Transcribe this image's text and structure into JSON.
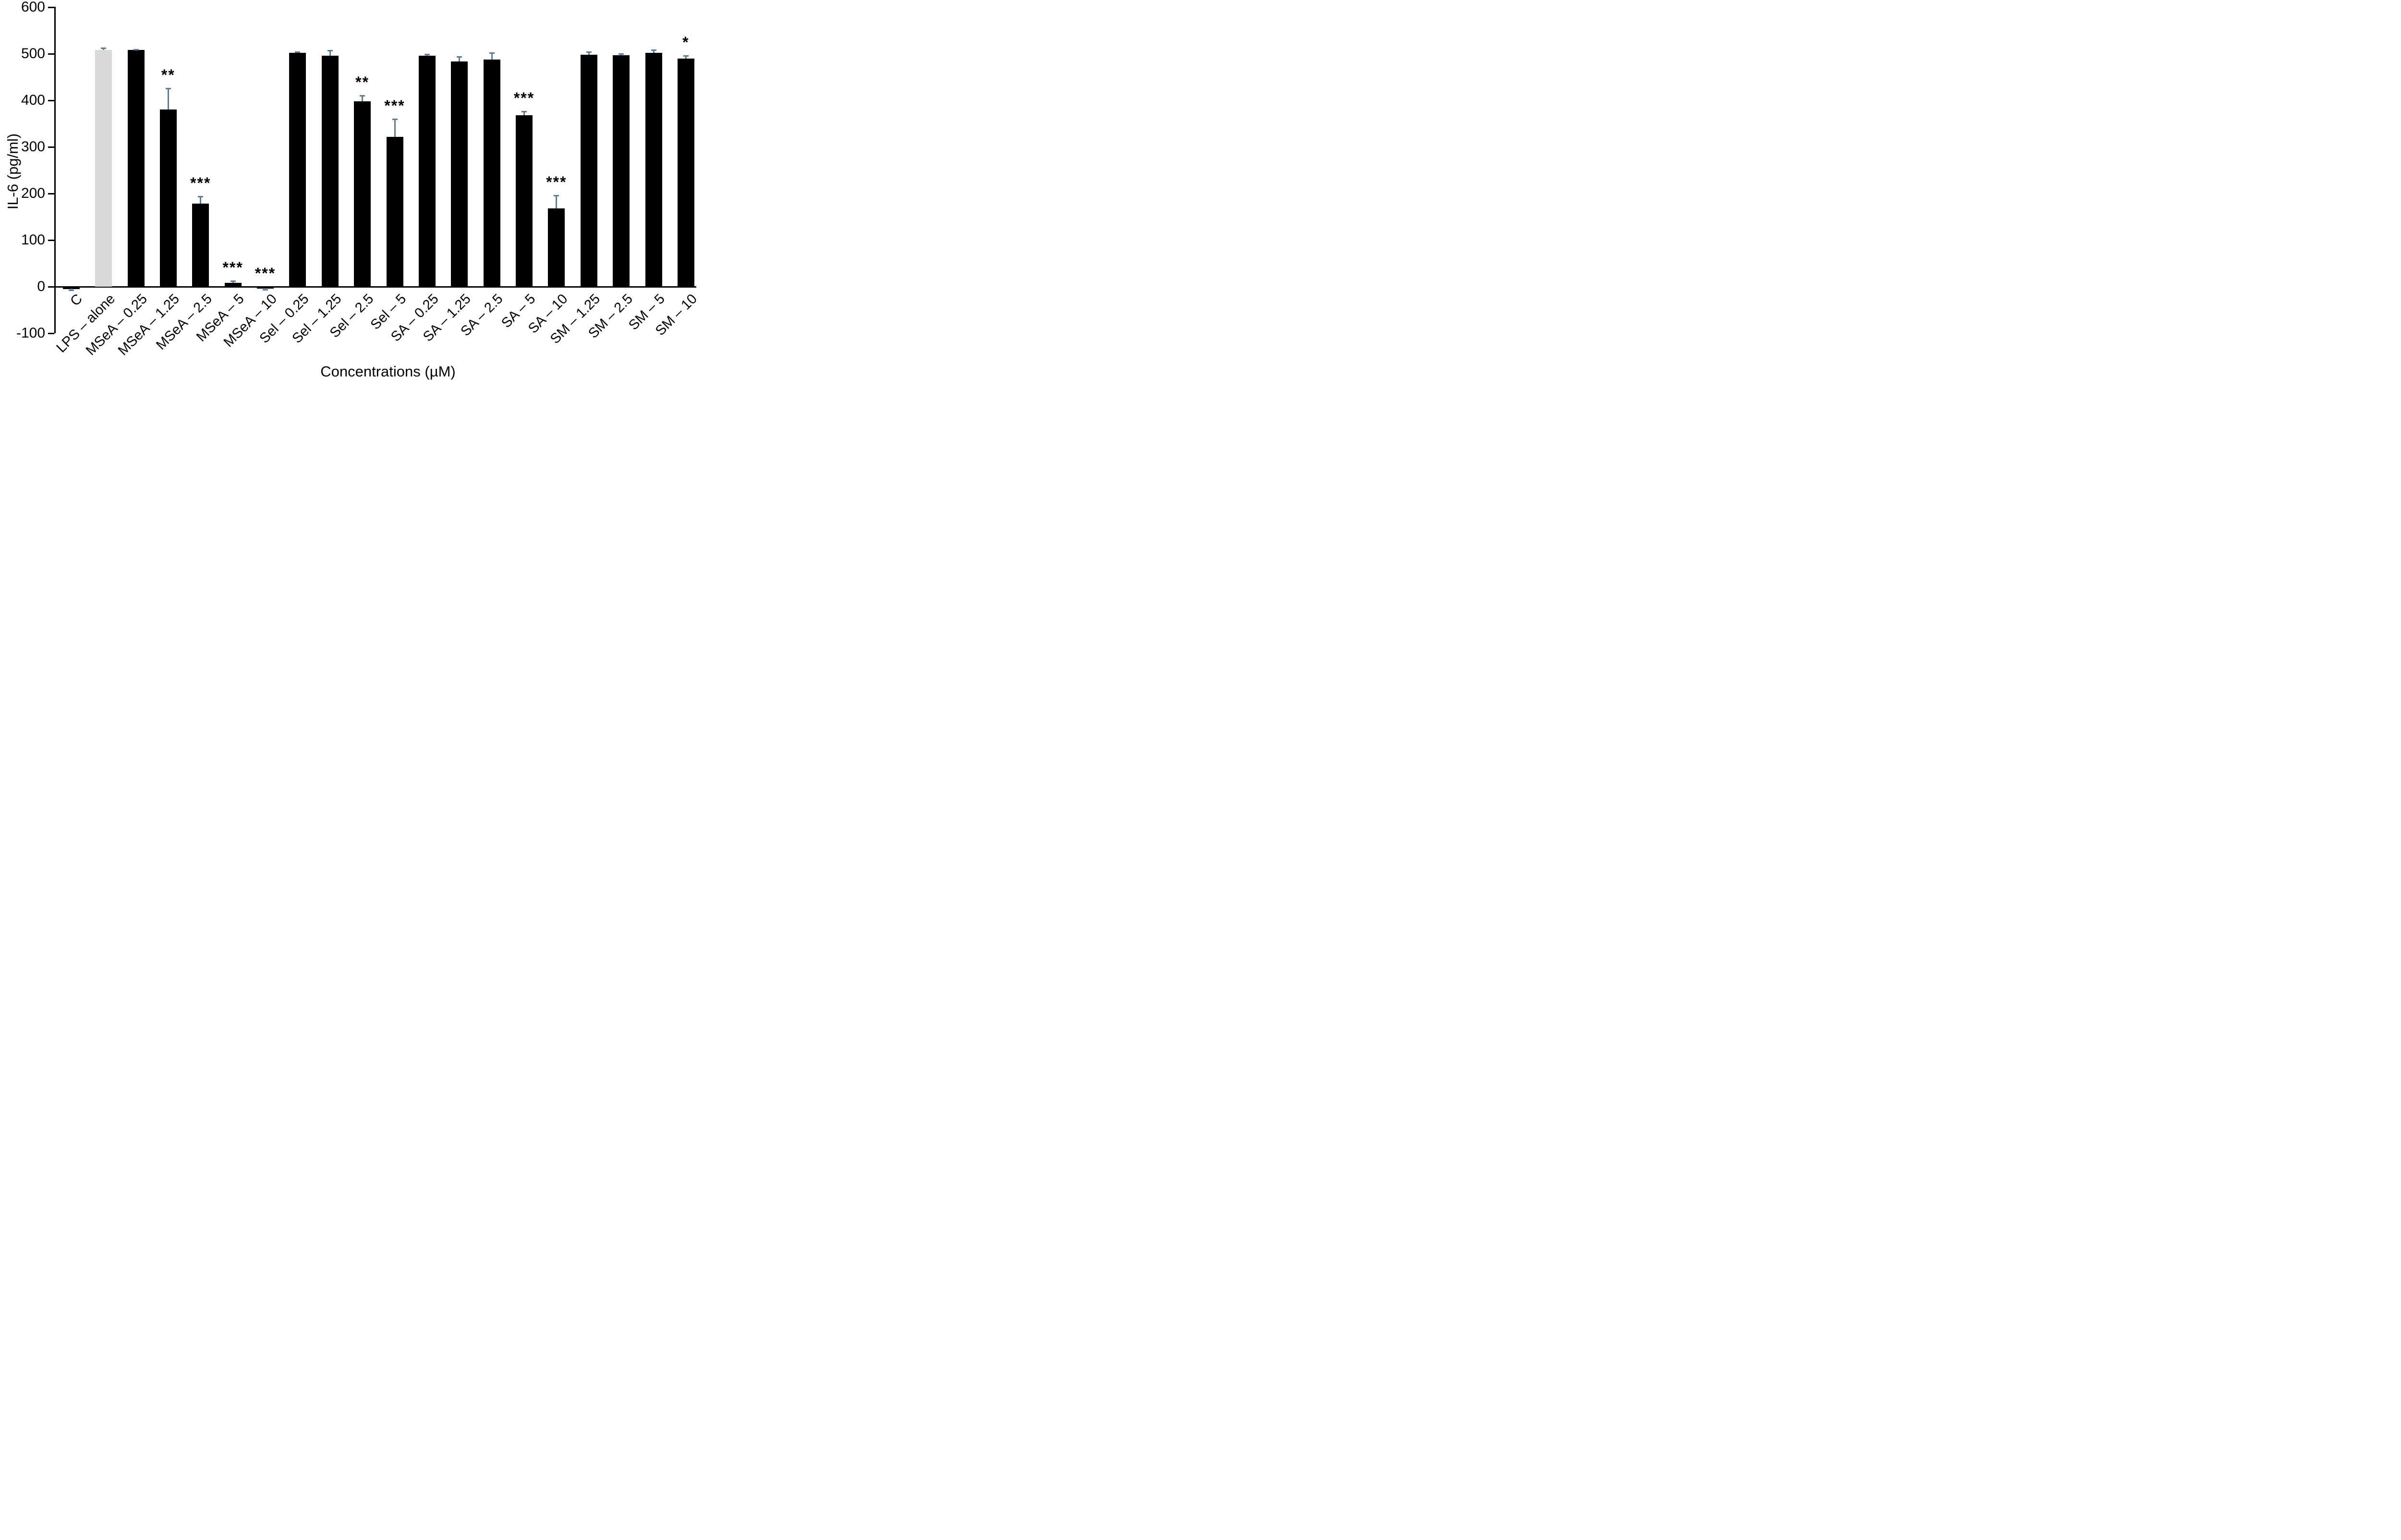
{
  "figure": {
    "y_axis_title": "IL-6 (pg/ml)",
    "x_axis_title": "Concentrations (µM)"
  },
  "chart_data": {
    "type": "bar",
    "title": "",
    "xlabel": "Concentrations (µM)",
    "ylabel": "IL-6 (pg/ml)",
    "ylim": [
      -100,
      600
    ],
    "yticks": [
      600,
      500,
      400,
      300,
      200,
      100,
      0,
      -100
    ],
    "grid": false,
    "legend_position": "none",
    "bar_color_default": "#000000",
    "control_bar_color": "#d9d9d9",
    "control_bar_index": 1,
    "error_bar_color": "#5b7da1",
    "categories": [
      "C",
      "LPS – alone",
      "MSeA – 0.25",
      "MSeA – 1.25",
      "MSeA – 2.5",
      "MSeA – 5",
      "MSeA – 10",
      "Sel – 0.25",
      "Sel – 1.25",
      "Sel – 2.5",
      "Sel – 5",
      "SA – 0.25",
      "SA – 1.25",
      "SA – 2.5",
      "SA – 5",
      "SA – 10",
      "SM – 1.25",
      "SM – 2.5",
      "SM – 5",
      "SM – 10"
    ],
    "values": [
      -4,
      509,
      508,
      381,
      178,
      8,
      -3,
      502,
      496,
      398,
      322,
      496,
      484,
      488,
      368,
      168,
      498,
      497,
      502,
      490
    ],
    "errors": [
      3,
      4,
      2,
      45,
      16,
      4,
      3,
      2,
      11,
      13,
      38,
      3,
      10,
      14,
      8,
      28,
      6,
      3,
      6,
      6
    ],
    "significance": [
      "",
      "",
      "",
      "**",
      "***",
      "***",
      "***",
      "",
      "",
      "**",
      "***",
      "",
      "",
      "",
      "***",
      "***",
      "",
      "",
      "",
      "*"
    ]
  }
}
